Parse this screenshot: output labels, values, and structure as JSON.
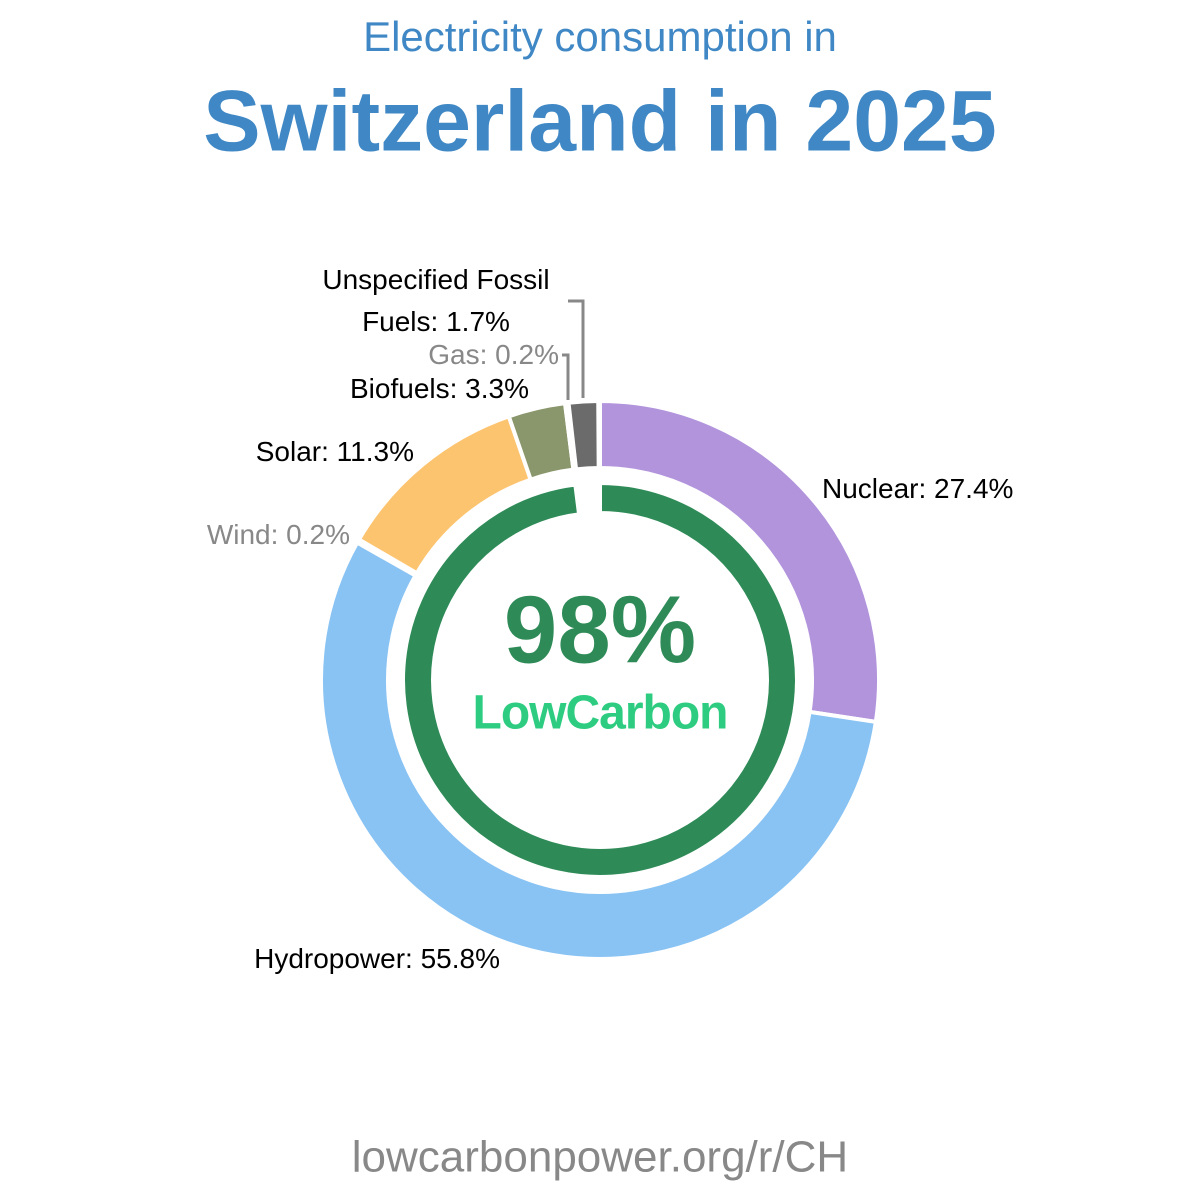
{
  "chart_data": {
    "type": "donut",
    "title": "Electricity consumption in",
    "subtitle": "Switzerland in 2025",
    "series": [
      {
        "name": "Nuclear",
        "color": "#b294dc",
        "values": [
          27.4
        ],
        "value_labels": [
          "Nuclear: 27.4%"
        ],
        "label_color": "#000000"
      },
      {
        "name": "Hydropower",
        "color": "#89c3f3",
        "values": [
          55.8
        ],
        "value_labels": [
          "Hydropower: 55.8%"
        ],
        "label_color": "#000000"
      },
      {
        "name": "Wind",
        "color": "#a8d4f5",
        "values": [
          0.2
        ],
        "value_labels": [
          "Wind: 0.2%"
        ],
        "label_color": "#888888"
      },
      {
        "name": "Solar",
        "color": "#fdc470",
        "values": [
          11.3
        ],
        "value_labels": [
          "Solar: 11.3%"
        ],
        "label_color": "#000000"
      },
      {
        "name": "Biofuels",
        "color": "#8a966c",
        "values": [
          3.3
        ],
        "value_labels": [
          "Biofuels: 3.3%"
        ],
        "label_color": "#000000"
      },
      {
        "name": "Gas",
        "color": "#9c9c9c",
        "values": [
          0.2
        ],
        "value_labels": [
          "Gas: 0.2%"
        ],
        "label_color": "#888888"
      },
      {
        "name": "Unspecified Fossil Fuels",
        "color": "#6b6b6b",
        "values": [
          1.7
        ],
        "value_labels": [
          "Unspecified Fossil Fuels: 1.7%"
        ],
        "label_color": "#000000"
      }
    ],
    "low_carbon": {
      "value": 98,
      "label": "98%",
      "color": "#2e8b57"
    },
    "brand": "LowCarbon",
    "footer": "lowcarbonpower.org/r/CH"
  }
}
